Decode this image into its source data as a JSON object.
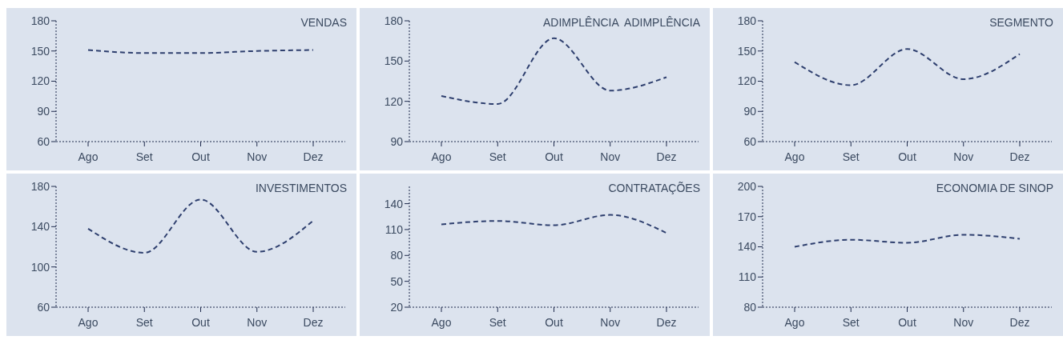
{
  "chart_data": [
    {
      "type": "line",
      "title": "VENDAS",
      "categories": [
        "Ago",
        "Set",
        "Out",
        "Nov",
        "Dez"
      ],
      "series": [
        {
          "color": "#2e3f6e",
          "values": [
            151,
            148,
            148,
            150,
            151
          ]
        }
      ],
      "ylim": [
        60,
        180
      ],
      "yticks": [
        60,
        90,
        120,
        150,
        180
      ],
      "line_style": "dashed"
    },
    {
      "type": "line",
      "title": "ADIMPLÊNCIA  ADIMPLÊNCIA",
      "categories": [
        "Ago",
        "Set",
        "Out",
        "Nov",
        "Dez"
      ],
      "series": [
        {
          "color": "#2e3f6e",
          "values": [
            124,
            118,
            167,
            128,
            138
          ]
        }
      ],
      "ylim": [
        90,
        180
      ],
      "yticks": [
        90,
        120,
        150,
        180
      ],
      "line_style": "dashed"
    },
    {
      "type": "line",
      "title": "SEGMENTO",
      "categories": [
        "Ago",
        "Set",
        "Out",
        "Nov",
        "Dez"
      ],
      "series": [
        {
          "color": "#2e3f6e",
          "values": [
            139,
            116,
            152,
            122,
            147
          ]
        }
      ],
      "ylim": [
        60,
        180
      ],
      "yticks": [
        60,
        90,
        120,
        150,
        180
      ],
      "line_style": "dashed"
    },
    {
      "type": "line",
      "title": "INVESTIMENTOS",
      "categories": [
        "Ago",
        "Set",
        "Out",
        "Nov",
        "Dez"
      ],
      "series": [
        {
          "color": "#2e3f6e",
          "values": [
            138,
            114,
            167,
            115,
            146
          ]
        }
      ],
      "ylim": [
        60,
        180
      ],
      "yticks": [
        60,
        100,
        140,
        180
      ],
      "line_style": "dashed"
    },
    {
      "type": "line",
      "title": "CONTRATAÇÕES",
      "categories": [
        "Ago",
        "Set",
        "Out",
        "Nov",
        "Dez"
      ],
      "series": [
        {
          "color": "#2e3f6e",
          "values": [
            116,
            120,
            115,
            127,
            106
          ]
        }
      ],
      "ylim": [
        20,
        160
      ],
      "yticks": [
        20,
        50,
        80,
        110,
        140
      ],
      "line_style": "dashed"
    },
    {
      "type": "line",
      "title": "ECONOMIA DE SINOP",
      "categories": [
        "Ago",
        "Set",
        "Out",
        "Nov",
        "Dez"
      ],
      "series": [
        {
          "color": "#2e3f6e",
          "values": [
            140,
            147,
            144,
            152,
            148
          ]
        }
      ],
      "ylim": [
        80,
        200
      ],
      "yticks": [
        80,
        110,
        140,
        170,
        200
      ],
      "line_style": "dashed"
    }
  ]
}
